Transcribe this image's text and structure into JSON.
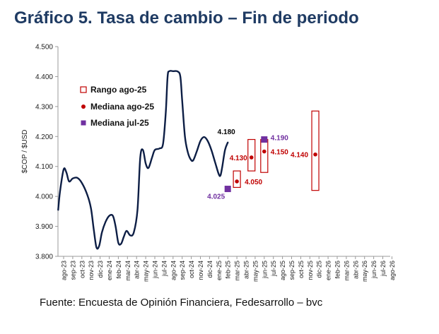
{
  "chart_data": {
    "type": "line",
    "title": "Gráfico 5. Tasa de cambio – Fin de periodo",
    "ylabel": "$COP / $USD",
    "source": "Fuente: Encuesta de Opinión Financiera, Fedesarrollo – bvc",
    "ylim": [
      3800,
      4500
    ],
    "yticks": [
      3800,
      3900,
      4000,
      4100,
      4200,
      4300,
      4400,
      4500
    ],
    "ytick_labels": [
      "3.800",
      "3.900",
      "4.000",
      "4.100",
      "4.200",
      "4.300",
      "4.400",
      "4.500"
    ],
    "categories": [
      "ago-23",
      "sep-23",
      "oct-23",
      "nov-23",
      "dic-23",
      "ene-24",
      "feb-24",
      "mar-24",
      "abr-24",
      "may-24",
      "jun-24",
      "jul-24",
      "ago-24",
      "sep-24",
      "oct-24",
      "nov-24",
      "dic-24",
      "ene-25",
      "feb-25",
      "mar-25",
      "abr-25",
      "may-25",
      "jun-25",
      "jul-25",
      "ago-25",
      "sep-25",
      "oct-25",
      "nov-25",
      "dic-25",
      "ene-26",
      "feb-26",
      "mar-26",
      "abr-26",
      "may-26",
      "jun-26",
      "jul-26",
      "ago-26"
    ],
    "series": [
      {
        "kind": "line",
        "color": "#0d1e45",
        "points": [
          {
            "x": -0.6,
            "y": 3955
          },
          {
            "x": -0.4,
            "y": 4015
          },
          {
            "x": 0,
            "y": 4090
          },
          {
            "x": 0.3,
            "y": 4080
          },
          {
            "x": 0.6,
            "y": 4050
          },
          {
            "x": 1.0,
            "y": 4060
          },
          {
            "x": 1.5,
            "y": 4062
          },
          {
            "x": 2.0,
            "y": 4045
          },
          {
            "x": 2.6,
            "y": 4005
          },
          {
            "x": 3.0,
            "y": 3960
          },
          {
            "x": 3.3,
            "y": 3890
          },
          {
            "x": 3.6,
            "y": 3830
          },
          {
            "x": 3.9,
            "y": 3835
          },
          {
            "x": 4.2,
            "y": 3880
          },
          {
            "x": 4.6,
            "y": 3915
          },
          {
            "x": 5.0,
            "y": 3935
          },
          {
            "x": 5.4,
            "y": 3935
          },
          {
            "x": 5.7,
            "y": 3900
          },
          {
            "x": 6.0,
            "y": 3845
          },
          {
            "x": 6.3,
            "y": 3842
          },
          {
            "x": 6.6,
            "y": 3865
          },
          {
            "x": 6.9,
            "y": 3885
          },
          {
            "x": 7.3,
            "y": 3870
          },
          {
            "x": 7.7,
            "y": 3880
          },
          {
            "x": 8.1,
            "y": 3955
          },
          {
            "x": 8.4,
            "y": 4130
          },
          {
            "x": 8.7,
            "y": 4155
          },
          {
            "x": 9.0,
            "y": 4110
          },
          {
            "x": 9.3,
            "y": 4095
          },
          {
            "x": 9.7,
            "y": 4130
          },
          {
            "x": 10.0,
            "y": 4155
          },
          {
            "x": 10.5,
            "y": 4160
          },
          {
            "x": 10.9,
            "y": 4175
          },
          {
            "x": 11.2,
            "y": 4280
          },
          {
            "x": 11.4,
            "y": 4400
          },
          {
            "x": 11.6,
            "y": 4418
          },
          {
            "x": 12.0,
            "y": 4418
          },
          {
            "x": 12.5,
            "y": 4417
          },
          {
            "x": 12.8,
            "y": 4400
          },
          {
            "x": 13.0,
            "y": 4320
          },
          {
            "x": 13.3,
            "y": 4200
          },
          {
            "x": 13.6,
            "y": 4150
          },
          {
            "x": 13.9,
            "y": 4125
          },
          {
            "x": 14.2,
            "y": 4120
          },
          {
            "x": 14.6,
            "y": 4150
          },
          {
            "x": 15.0,
            "y": 4185
          },
          {
            "x": 15.4,
            "y": 4198
          },
          {
            "x": 15.8,
            "y": 4185
          },
          {
            "x": 16.2,
            "y": 4155
          },
          {
            "x": 16.6,
            "y": 4115
          },
          {
            "x": 17.0,
            "y": 4075
          },
          {
            "x": 17.2,
            "y": 4070
          },
          {
            "x": 17.4,
            "y": 4100
          },
          {
            "x": 17.7,
            "y": 4155
          },
          {
            "x": 18.0,
            "y": 4180
          }
        ]
      },
      {
        "kind": "range",
        "name": "Rango ago-25",
        "color": "#c00000",
        "items": [
          {
            "x": 19.0,
            "low": 4030,
            "high": 4085
          },
          {
            "x": 20.6,
            "low": 4085,
            "high": 4190
          },
          {
            "x": 22.0,
            "low": 4080,
            "high": 4190
          },
          {
            "x": 27.6,
            "low": 4020,
            "high": 4285
          }
        ]
      },
      {
        "kind": "points",
        "name": "Mediana ago-25",
        "color": "#c00000",
        "items": [
          {
            "x": 19.0,
            "y": 4050,
            "label": "4.050"
          },
          {
            "x": 20.6,
            "y": 4130,
            "label": "4.130"
          },
          {
            "x": 22.0,
            "y": 4150,
            "label": "4.150"
          },
          {
            "x": 27.6,
            "y": 4140,
            "label": "4.140"
          }
        ]
      },
      {
        "kind": "points",
        "name": "Mediana jul-25",
        "color": "#7030a0",
        "items": [
          {
            "x": 18.0,
            "y": 4025,
            "label": "4.025"
          },
          {
            "x": 22.0,
            "y": 4190,
            "label": "4.190"
          }
        ]
      }
    ],
    "annotations": [
      {
        "x": 18.0,
        "y": 4180,
        "label": "4.180"
      }
    ],
    "legend": {
      "position": "top-left",
      "entries": [
        {
          "label": "Rango ago-25",
          "marker": "hollow-square",
          "color": "#c00000"
        },
        {
          "label": "Mediana ago-25",
          "marker": "dot",
          "color": "#c00000"
        },
        {
          "label": "Mediana jul-25",
          "marker": "square",
          "color": "#7030a0"
        }
      ]
    },
    "grid": false
  }
}
